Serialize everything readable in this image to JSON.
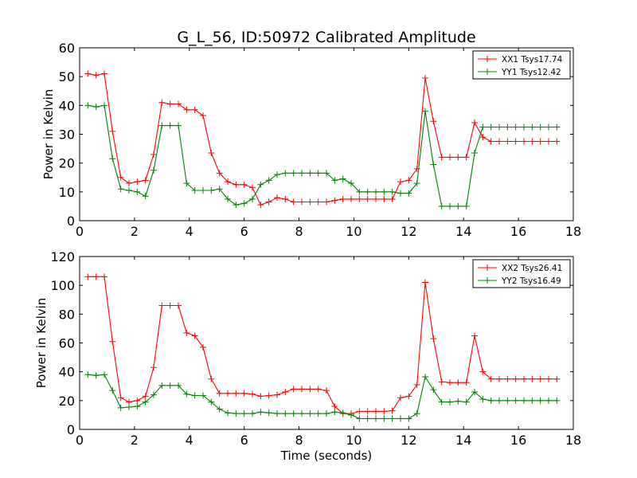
{
  "figure": {
    "title": "G_L_56, ID:50972 Calibrated Amplitude",
    "xlabel": "Time (seconds)"
  },
  "chart_data": [
    {
      "type": "line",
      "title": "G_L_56, ID:50972 Calibrated Amplitude",
      "xlabel": "",
      "ylabel": "Power in Kelvin",
      "xlim": [
        0,
        18
      ],
      "ylim": [
        0,
        60
      ],
      "xticks": [
        "0",
        "2",
        "4",
        "6",
        "8",
        "10",
        "12",
        "14",
        "16",
        "18"
      ],
      "yticks": [
        "0",
        "10",
        "20",
        "30",
        "40",
        "50",
        "60"
      ],
      "legend_position": "top-right",
      "grid": false,
      "x": [
        0.3,
        0.6,
        0.9,
        1.2,
        1.5,
        1.8,
        2.1,
        2.4,
        2.7,
        3.0,
        3.3,
        3.6,
        3.9,
        4.2,
        4.5,
        4.8,
        5.1,
        5.4,
        5.7,
        6.0,
        6.3,
        6.6,
        6.9,
        7.2,
        7.5,
        7.8,
        8.1,
        8.4,
        8.7,
        9.0,
        9.3,
        9.6,
        9.9,
        10.2,
        10.5,
        10.8,
        11.1,
        11.4,
        11.7,
        12.0,
        12.3,
        12.6,
        12.9,
        13.2,
        13.5,
        13.8,
        14.1,
        14.4,
        14.7,
        15.0,
        15.3,
        15.6,
        15.9,
        16.2,
        16.5,
        16.8,
        17.1,
        17.4
      ],
      "series": [
        {
          "name": "XX1 Tsys17.74",
          "color": "#ff0000",
          "values": [
            51,
            50.5,
            51,
            31,
            15,
            13,
            13.5,
            14,
            23,
            41,
            40.5,
            40.5,
            38.5,
            38.5,
            36.5,
            23.5,
            16.5,
            13.5,
            12.5,
            12.5,
            11.5,
            5.5,
            6.5,
            8,
            7.5,
            6.5,
            6.5,
            6.5,
            6.5,
            6.5,
            7,
            7.5,
            7.5,
            7.5,
            7.5,
            7.5,
            7.5,
            7.5,
            13.5,
            14,
            18,
            49.5,
            34.5,
            22,
            22,
            22,
            22,
            34,
            29,
            27.5,
            27.5,
            27.5,
            27.5,
            27.5,
            27.5,
            27.5,
            27.5,
            27.5
          ]
        },
        {
          "name": "YY1 Tsys12.42",
          "color": "#008000",
          "values": [
            40,
            39.5,
            40,
            21.5,
            11,
            10.5,
            10,
            8.5,
            17.5,
            33,
            33,
            33,
            13,
            10.5,
            10.5,
            10.5,
            11,
            7.5,
            5.5,
            6,
            7.5,
            12.5,
            14,
            16,
            16.5,
            16.5,
            16.5,
            16.5,
            16.5,
            16.5,
            14,
            14.5,
            13,
            10,
            10,
            10,
            10,
            10,
            9.5,
            9.5,
            13,
            38,
            19.5,
            5,
            5,
            5,
            5,
            23.5,
            32.5,
            32.5,
            32.5,
            32.5,
            32.5,
            32.5,
            32.5,
            32.5,
            32.5,
            32.5
          ]
        }
      ]
    },
    {
      "type": "line",
      "title": "",
      "xlabel": "Time (seconds)",
      "ylabel": "Power in Kelvin",
      "xlim": [
        0,
        18
      ],
      "ylim": [
        0,
        120
      ],
      "xticks": [
        "0",
        "2",
        "4",
        "6",
        "8",
        "10",
        "12",
        "14",
        "16",
        "18"
      ],
      "yticks": [
        "0",
        "20",
        "40",
        "60",
        "80",
        "100",
        "120"
      ],
      "legend_position": "top-right",
      "grid": false,
      "x": [
        0.3,
        0.6,
        0.9,
        1.2,
        1.5,
        1.8,
        2.1,
        2.4,
        2.7,
        3.0,
        3.3,
        3.6,
        3.9,
        4.2,
        4.5,
        4.8,
        5.1,
        5.4,
        5.7,
        6.0,
        6.3,
        6.6,
        6.9,
        7.2,
        7.5,
        7.8,
        8.1,
        8.4,
        8.7,
        9.0,
        9.3,
        9.6,
        9.9,
        10.2,
        10.5,
        10.8,
        11.1,
        11.4,
        11.7,
        12.0,
        12.3,
        12.6,
        12.9,
        13.2,
        13.5,
        13.8,
        14.1,
        14.4,
        14.7,
        15.0,
        15.3,
        15.6,
        15.9,
        16.2,
        16.5,
        16.8,
        17.1,
        17.4
      ],
      "series": [
        {
          "name": "XX2 Tsys26.41",
          "color": "#ff0000",
          "values": [
            106,
            106,
            106,
            61,
            22,
            19,
            20,
            23,
            43,
            86,
            86,
            86,
            67,
            65,
            57,
            35,
            25,
            25,
            25,
            25,
            24.5,
            23,
            23.5,
            24,
            26,
            28,
            28,
            28,
            28,
            27,
            16,
            11,
            11,
            12.5,
            12.5,
            12.5,
            12.5,
            13,
            22,
            23,
            31,
            102,
            63,
            33,
            32.5,
            32.5,
            32.5,
            65,
            40,
            35,
            35,
            35,
            35,
            35,
            35,
            35,
            35,
            35
          ]
        },
        {
          "name": "YY2 Tsys16.49",
          "color": "#008000",
          "values": [
            38,
            37.5,
            38,
            27,
            15,
            15.5,
            16,
            19,
            24,
            30.5,
            30.5,
            30.5,
            24.5,
            23.5,
            23.5,
            19,
            14,
            11.5,
            11,
            11,
            11,
            12,
            11.5,
            11,
            11,
            11,
            11,
            11,
            11,
            11,
            12,
            11.5,
            10,
            7.5,
            7.5,
            7.5,
            7.5,
            7.5,
            7.5,
            7.5,
            11,
            36.5,
            27.5,
            19,
            19,
            19.5,
            19,
            26,
            21,
            20,
            20,
            20,
            20,
            20,
            20,
            20,
            20,
            20
          ]
        }
      ]
    }
  ]
}
